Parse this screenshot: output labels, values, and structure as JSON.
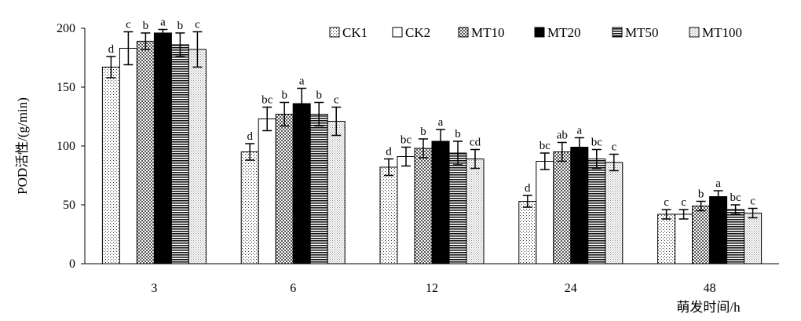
{
  "chart_data": {
    "type": "bar",
    "categories": [
      "3",
      "6",
      "12",
      "24",
      "48"
    ],
    "xlabel": "萌发时间/h",
    "ylabel": "POD活性/(g/min)",
    "ylim": [
      0,
      200
    ],
    "yticks": [
      0,
      50,
      100,
      150,
      200
    ],
    "grid": false,
    "legend_position": "top-right",
    "series": [
      {
        "name": "CK1",
        "pattern": "dots",
        "values": [
          167,
          95,
          82,
          53,
          42
        ],
        "errors": [
          9,
          7,
          7,
          5,
          4
        ],
        "labels": [
          "d",
          "d",
          "d",
          "d",
          "c"
        ]
      },
      {
        "name": "CK2",
        "pattern": "white",
        "values": [
          183,
          123,
          91,
          87,
          42
        ],
        "errors": [
          14,
          10,
          8,
          7,
          4
        ],
        "labels": [
          "c",
          "bc",
          "bc",
          "bc",
          "c"
        ]
      },
      {
        "name": "MT10",
        "pattern": "check",
        "values": [
          189,
          127,
          98,
          95,
          49
        ],
        "errors": [
          7,
          10,
          8,
          8,
          4
        ],
        "labels": [
          "b",
          "b",
          "b",
          "ab",
          "b"
        ]
      },
      {
        "name": "MT20",
        "pattern": "black",
        "values": [
          196,
          136,
          104,
          99,
          57
        ],
        "errors": [
          3,
          13,
          10,
          8,
          5
        ],
        "labels": [
          "a",
          "a",
          "a",
          "a",
          "a"
        ]
      },
      {
        "name": "MT50",
        "pattern": "hlines",
        "values": [
          186,
          127,
          94,
          89,
          46
        ],
        "errors": [
          10,
          10,
          10,
          8,
          4
        ],
        "labels": [
          "b",
          "b",
          "b",
          "bc",
          "bc"
        ]
      },
      {
        "name": "MT100",
        "pattern": "fine",
        "values": [
          182,
          121,
          89,
          86,
          43
        ],
        "errors": [
          15,
          12,
          8,
          7,
          4
        ],
        "labels": [
          "c",
          "c",
          "cd",
          "c",
          "c"
        ]
      }
    ]
  }
}
